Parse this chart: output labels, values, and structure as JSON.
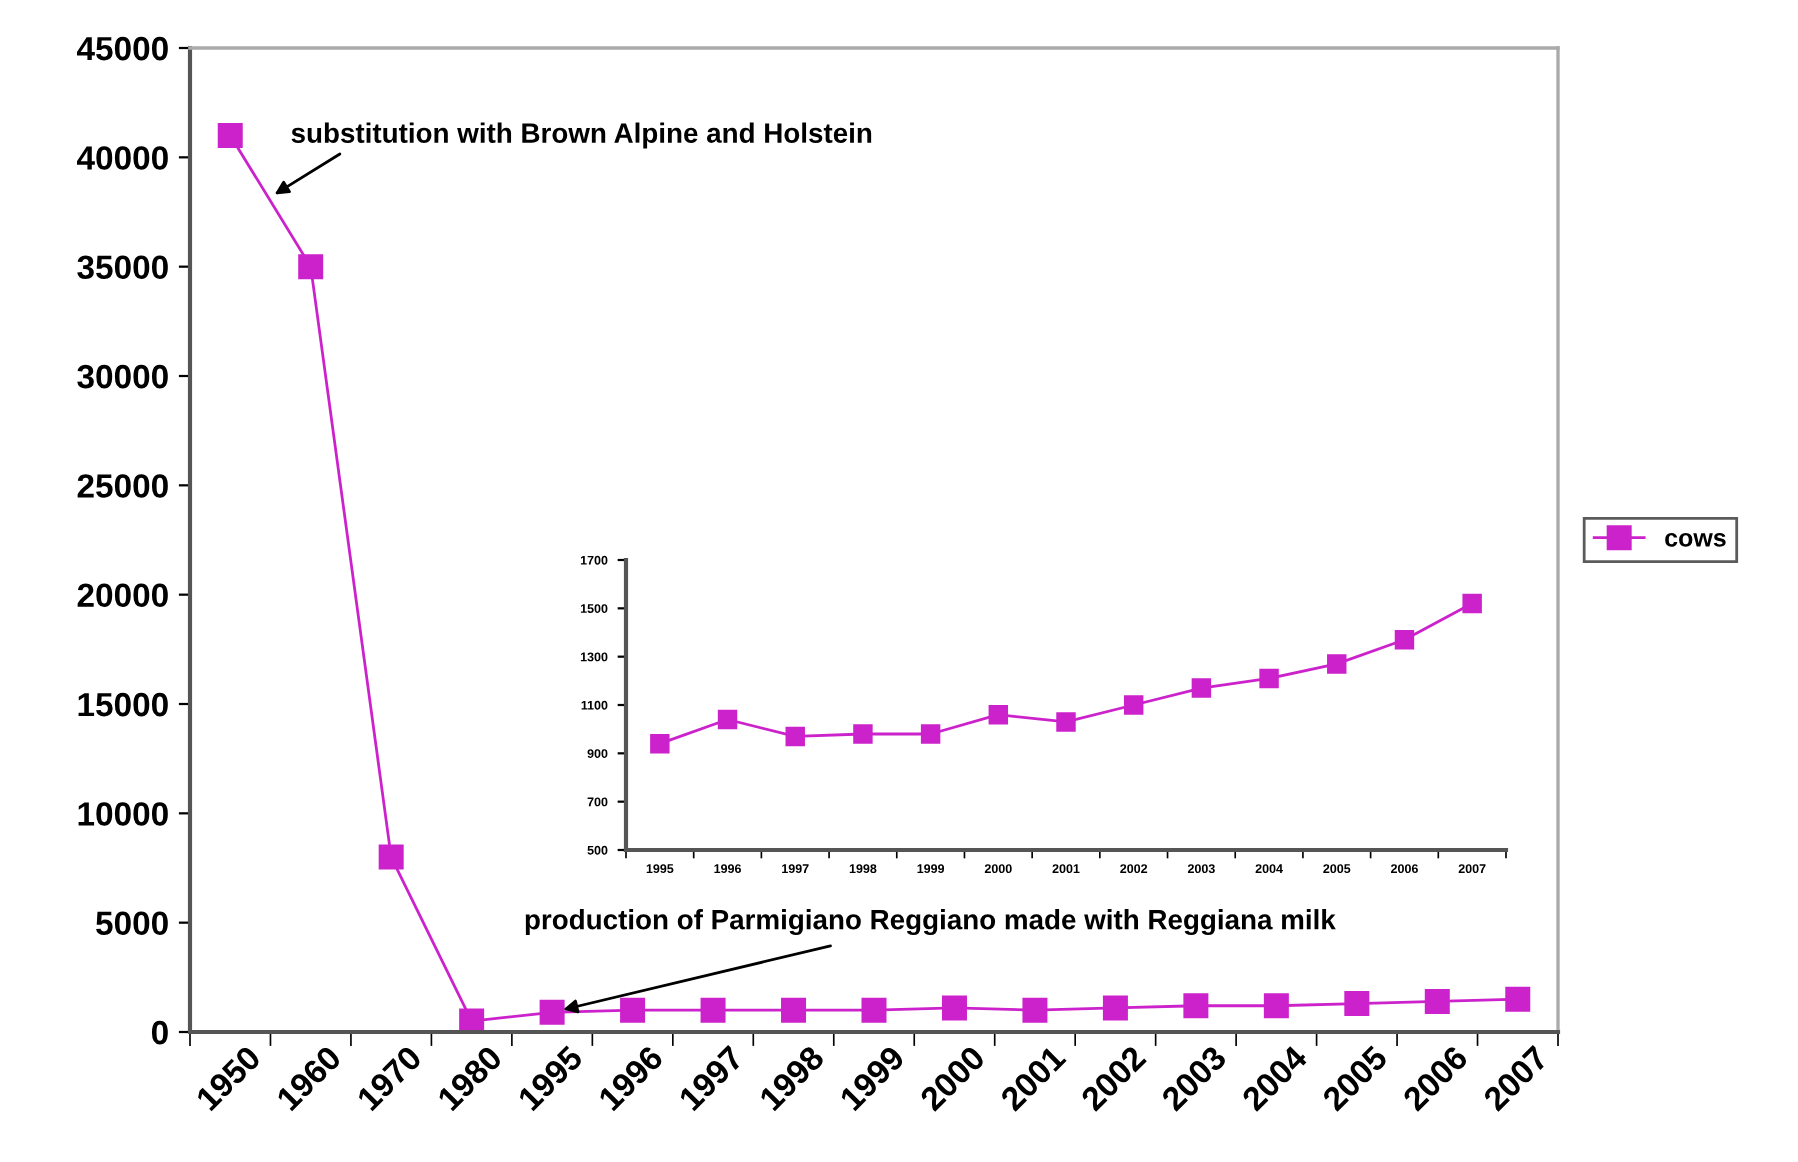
{
  "chart_data": [
    {
      "type": "line",
      "categories": [
        "1950",
        "1960",
        "1970",
        "1980",
        "1995",
        "1996",
        "1997",
        "1998",
        "1999",
        "2000",
        "2001",
        "2002",
        "2003",
        "2004",
        "2005",
        "2006",
        "2007"
      ],
      "series": [
        {
          "name": "cows",
          "color": "#cc22cc",
          "values": [
            41000,
            35000,
            8000,
            500,
            900,
            1000,
            1000,
            1000,
            1000,
            1100,
            1000,
            1100,
            1200,
            1200,
            1300,
            1400,
            1500
          ]
        }
      ],
      "ylim": [
        0,
        45000
      ],
      "yticks": [
        0,
        5000,
        10000,
        15000,
        20000,
        25000,
        30000,
        35000,
        40000,
        45000
      ],
      "marker": "square",
      "legend": "right",
      "grid": false,
      "annotations": [
        "substitution with Brown Alpine and Holstein",
        {
          "text": "production of Parmigiano Reggiano made with Reggiana milk",
          "x": "1995",
          "y": 900
        }
      ]
    },
    {
      "type": "line",
      "categories": [
        "1995",
        "1996",
        "1997",
        "1998",
        "1999",
        "2000",
        "2001",
        "2002",
        "2003",
        "2004",
        "2005",
        "2006",
        "2007"
      ],
      "series": [
        {
          "color": "#cc22cc",
          "values": [
            940,
            1040,
            970,
            980,
            980,
            1060,
            1030,
            1100,
            1170,
            1210,
            1270,
            1370,
            1520
          ]
        }
      ],
      "ylim": [
        500,
        1700
      ],
      "yticks": [
        500,
        700,
        900,
        1100,
        1300,
        1500,
        1700
      ],
      "marker": "square",
      "grid": false
    }
  ]
}
